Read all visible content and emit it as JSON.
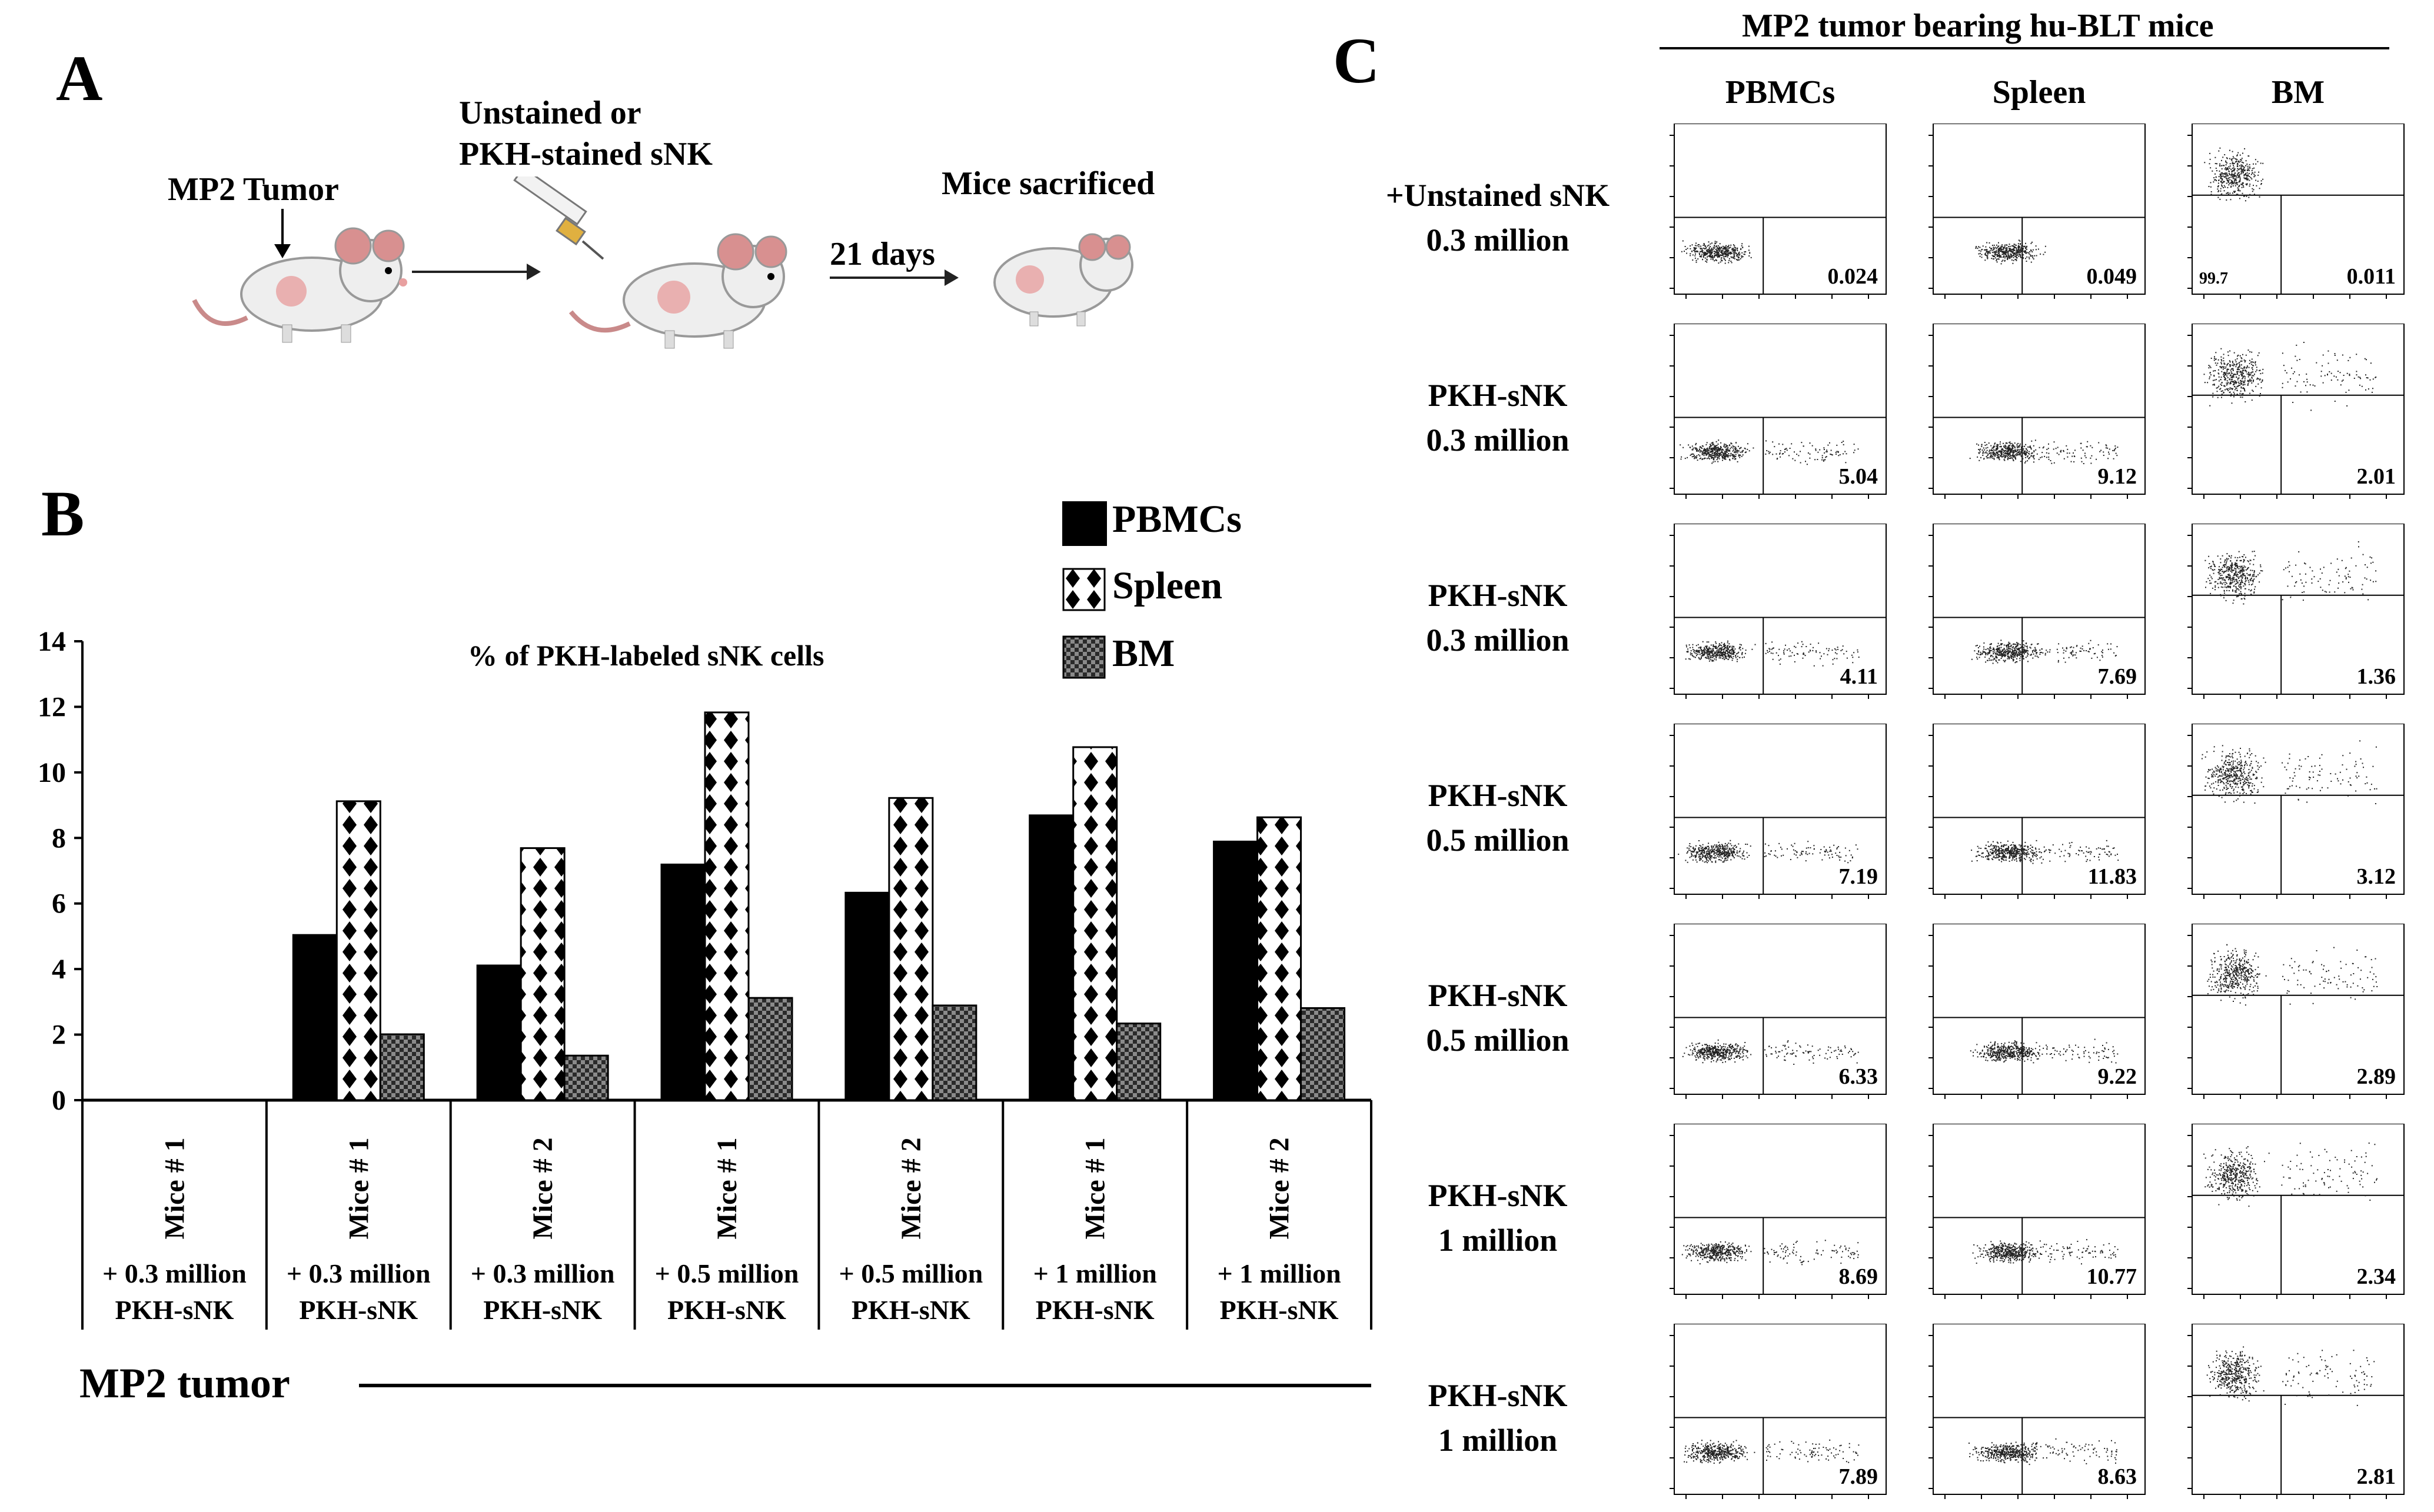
{
  "panel_a": {
    "label": "A",
    "tumor_label": "MP2 Tumor",
    "injection_label_line1": "Unstained or",
    "injection_label_line2": "PKH-stained sNK",
    "days_label": "21 days",
    "sacrificed_label": "Mice sacrificed"
  },
  "panel_b": {
    "label": "B",
    "bottom_label": "MP2 tumor",
    "colors": {
      "pbmc": "#000000",
      "spleen": "#ffffff",
      "bm": "#555555"
    }
  },
  "panel_c": {
    "label": "C",
    "header": "MP2 tumor bearing hu-BLT mice",
    "columns": [
      "PBMCs",
      "Spleen",
      "BM"
    ],
    "rows": [
      {
        "line1": "+Unstained sNK",
        "line2": "0.3 million",
        "values": [
          "0.024",
          "0.049",
          "0.011"
        ],
        "bm_left": "99.7"
      },
      {
        "line1": "PKH-sNK",
        "line2": "0.3 million",
        "values": [
          "5.04",
          "9.12",
          "2.01"
        ]
      },
      {
        "line1": "PKH-sNK",
        "line2": "0.3 million",
        "values": [
          "4.11",
          "7.69",
          "1.36"
        ]
      },
      {
        "line1": "PKH-sNK",
        "line2": "0.5 million",
        "values": [
          "7.19",
          "11.83",
          "3.12"
        ]
      },
      {
        "line1": "PKH-sNK",
        "line2": "0.5 million",
        "values": [
          "6.33",
          "9.22",
          "2.89"
        ]
      },
      {
        "line1": "PKH-sNK",
        "line2": "1 million",
        "values": [
          "8.69",
          "10.77",
          "2.34"
        ]
      },
      {
        "line1": "PKH-sNK",
        "line2": "1 million",
        "values": [
          "7.89",
          "8.63",
          "2.81"
        ]
      }
    ]
  },
  "chart_data": {
    "type": "bar",
    "title": "% of PKH-labeled sNK cells",
    "categories": [
      {
        "mouse": "Mice # 1",
        "dose": "+ 0.3 million",
        "cells": "PKH-sNK"
      },
      {
        "mouse": "Mice # 1",
        "dose": "+ 0.3 million",
        "cells": "PKH-sNK"
      },
      {
        "mouse": "Mice # 2",
        "dose": "+ 0.3 million",
        "cells": "PKH-sNK"
      },
      {
        "mouse": "Mice # 1",
        "dose": "+ 0.5 million",
        "cells": "PKH-sNK"
      },
      {
        "mouse": "Mice # 2",
        "dose": "+ 0.5 million",
        "cells": "PKH-sNK"
      },
      {
        "mouse": "Mice # 1",
        "dose": "+ 1 million",
        "cells": "PKH-sNK"
      },
      {
        "mouse": "Mice # 2",
        "dose": "+ 1 million",
        "cells": "PKH-sNK"
      }
    ],
    "series": [
      {
        "name": "PBMCs",
        "values": [
          0,
          5.04,
          4.11,
          7.19,
          6.33,
          8.69,
          7.89
        ]
      },
      {
        "name": "Spleen",
        "values": [
          0,
          9.12,
          7.69,
          11.83,
          9.22,
          10.77,
          8.63
        ]
      },
      {
        "name": "BM",
        "values": [
          0,
          2.01,
          1.36,
          3.12,
          2.89,
          2.34,
          2.81
        ]
      }
    ],
    "ylim": [
      0,
      14
    ],
    "yticks": [
      0,
      2,
      4,
      6,
      8,
      10,
      12,
      14
    ],
    "legend_position": "top-right"
  }
}
